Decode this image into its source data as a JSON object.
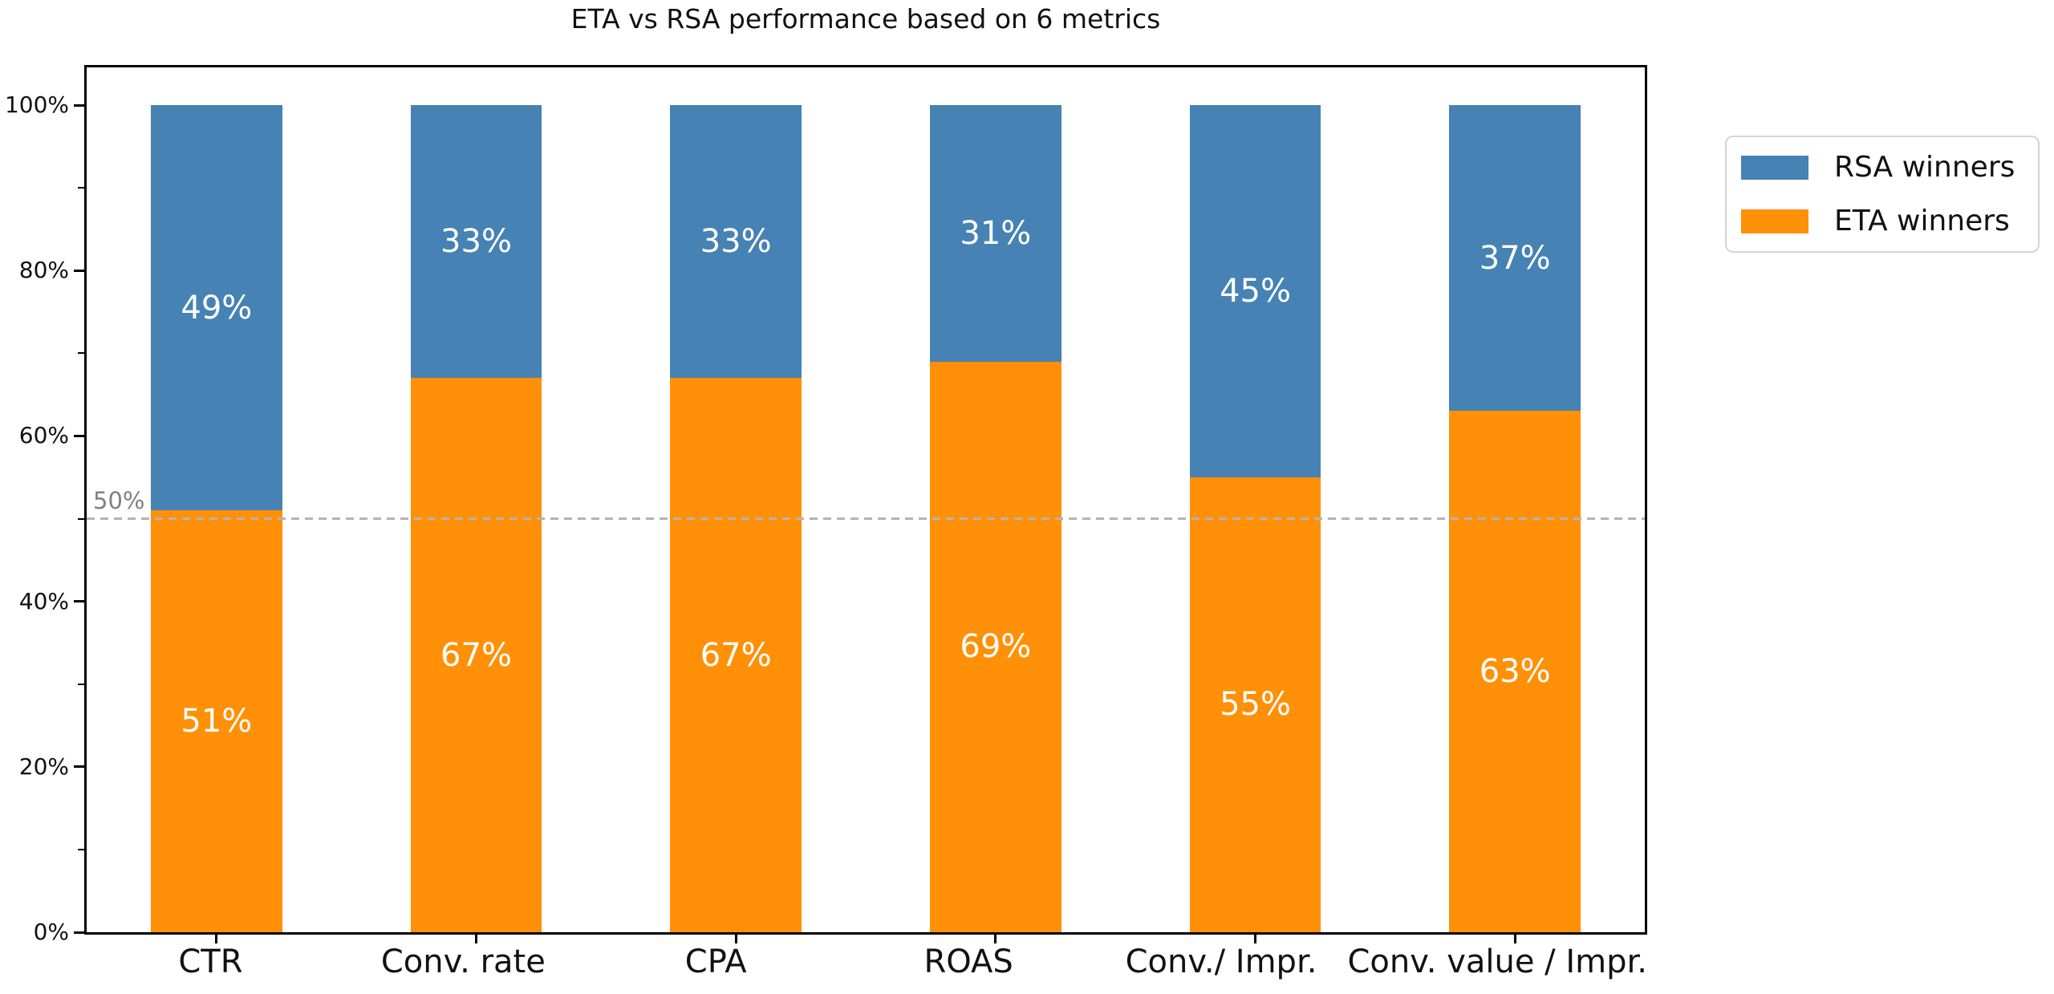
{
  "chart_data": {
    "type": "bar",
    "stacked": true,
    "title": "ETA vs RSA performance based on 6 metrics",
    "categories": [
      "CTR",
      "Conv. rate",
      "CPA",
      "ROAS",
      "Conv./ Impr.",
      "Conv. value / Impr."
    ],
    "series": [
      {
        "name": "ETA winners",
        "color": "#ff9008",
        "values": [
          51,
          67,
          67,
          69,
          55,
          63
        ],
        "bar_labels": [
          "51%",
          "67%",
          "67%",
          "69%",
          "55%",
          "63%"
        ]
      },
      {
        "name": "RSA winners",
        "color": "#4682b4",
        "values": [
          49,
          33,
          33,
          31,
          45,
          37
        ],
        "bar_labels": [
          "49%",
          "33%",
          "33%",
          "31%",
          "45%",
          "37%"
        ]
      }
    ],
    "y_axis": {
      "tick_values": [
        0,
        20,
        40,
        60,
        80,
        100
      ],
      "tick_labels": [
        "0%",
        "20%",
        "40%",
        "60%",
        "80%",
        "100%"
      ],
      "minor_tick_values": [
        10,
        30,
        50,
        70,
        90
      ],
      "range": [
        0,
        104.8
      ]
    },
    "reference_line": {
      "value": 50,
      "label": "50%",
      "style": "dashed",
      "color": "#b3b3b3"
    },
    "legend": {
      "position": "upper-right-outside",
      "entries": [
        {
          "label": "RSA winners",
          "color": "#4682b4"
        },
        {
          "label": "ETA winners",
          "color": "#ff9008"
        }
      ]
    },
    "grid": false,
    "bar_label_color": "#ffffff",
    "plot_background": "#ffffff"
  }
}
